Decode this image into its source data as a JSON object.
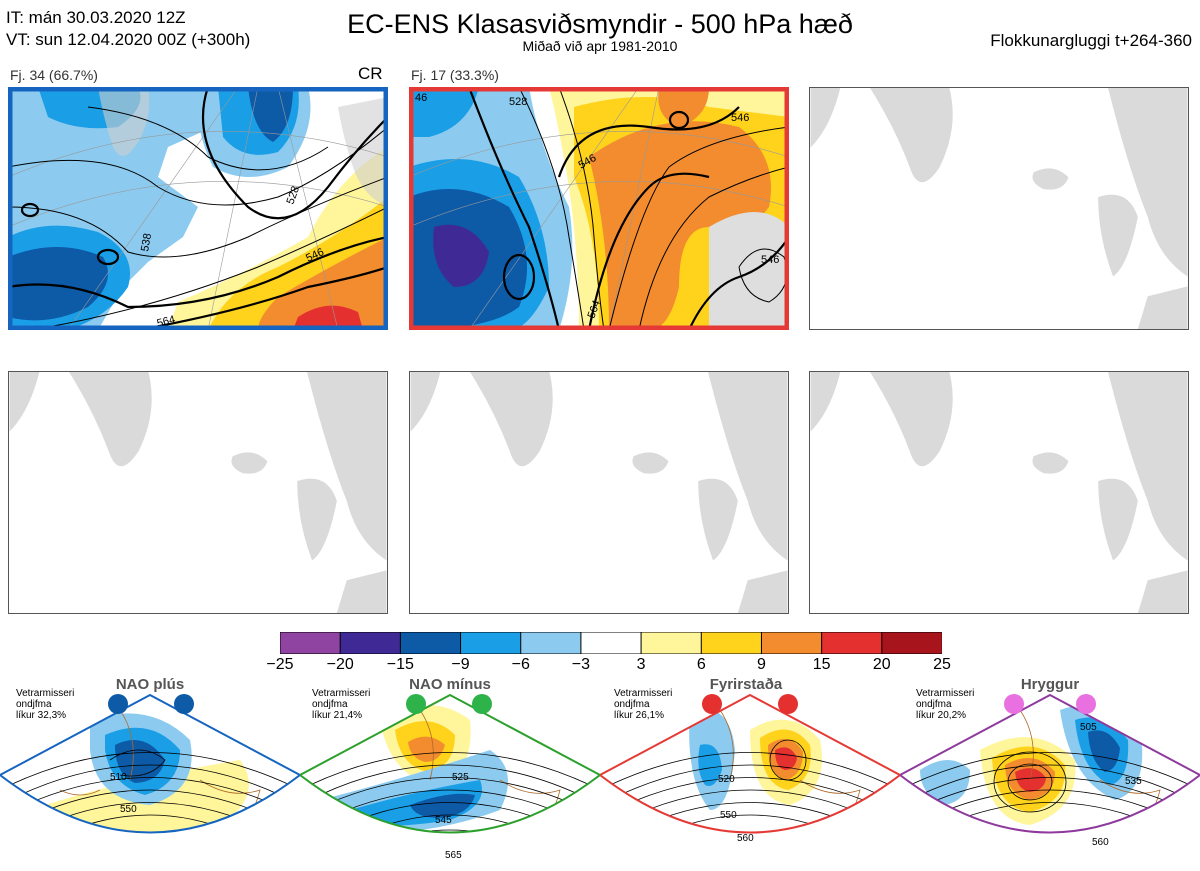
{
  "header": {
    "it_line": "IT: mán 30.03.2020 12Z",
    "vt_line": "VT: sun 12.04.2020 00Z  (+300h)",
    "title": "EC-ENS Klasasviðsmyndir - 500 hPa hæð",
    "subtitle": "Miðað við apr 1981-2010",
    "window": "Flokkunargluggi t+264-360"
  },
  "clusters": [
    {
      "label": "Fj. 34 (66.7%)",
      "tag": "CR",
      "border_color": "#1565c0",
      "members": 34,
      "percent": 66.7,
      "contour_labels": [
        "528",
        "546",
        "564",
        "538"
      ]
    },
    {
      "label": "Fj. 17 (33.3%)",
      "tag": "",
      "border_color": "#e53935",
      "members": 17,
      "percent": 33.3,
      "contour_labels": [
        "46",
        "528",
        "546",
        "546",
        "564",
        "546"
      ]
    }
  ],
  "colorbar": {
    "ticks": [
      "−25",
      "−20",
      "−15",
      "−9",
      "−6",
      "−3",
      "3",
      "6",
      "9",
      "15",
      "20",
      "25"
    ],
    "colors": [
      "#8e44a0",
      "#3f2a95",
      "#0d5aa7",
      "#1a9ee6",
      "#8ccbef",
      "#ffffff",
      "#fff59a",
      "#ffd21c",
      "#f28c2e",
      "#e53030",
      "#a8141c"
    ]
  },
  "regimes": [
    {
      "name": "NAO plús",
      "note": [
        "Vetrarmisseri",
        "ondjfma",
        "líkur 32,3%"
      ],
      "color": "#1565c0",
      "dot_color": "#0d5aa7",
      "labels": [
        "510",
        "550"
      ]
    },
    {
      "name": "NAO mínus",
      "note": [
        "Vetrarmisseri",
        "ondjfma",
        "líkur 21,4%"
      ],
      "color": "#2ca02c",
      "dot_color": "#2db34a",
      "labels": [
        "525",
        "545",
        "565"
      ]
    },
    {
      "name": "Fyrirstaða",
      "note": [
        "Vetrarmisseri",
        "ondjfma",
        "líkur 26,1%"
      ],
      "color": "#e53935",
      "dot_color": "#e53030",
      "labels": [
        "520",
        "550",
        "560"
      ]
    },
    {
      "name": "Hryggur",
      "note": [
        "Vetrarmisseri",
        "ondjfma",
        "líkur 20,2%"
      ],
      "color": "#8e3a9d",
      "dot_color": "#e870e0",
      "labels": [
        "505",
        "535",
        "560"
      ]
    }
  ]
}
